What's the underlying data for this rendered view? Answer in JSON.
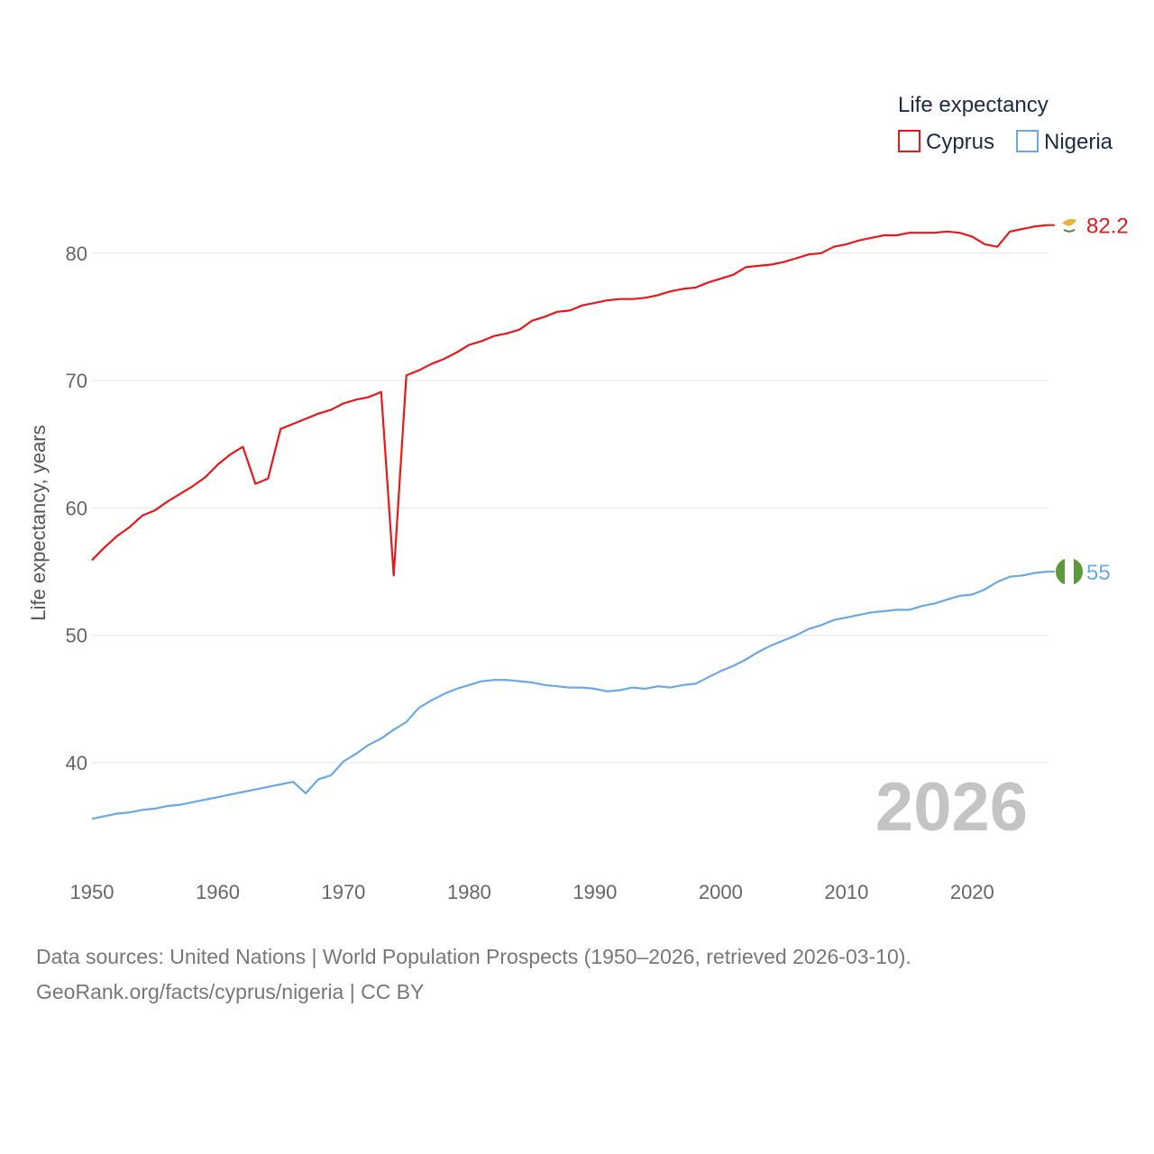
{
  "chart_data": {
    "type": "line",
    "title": "",
    "legend_title": "Life expectancy",
    "xlabel": "",
    "ylabel": "Life expectancy, years",
    "xlim": [
      1950,
      2026
    ],
    "ylim": [
      34,
      90
    ],
    "x_ticks": [
      1950,
      1960,
      1970,
      1980,
      1990,
      2000,
      2010,
      2020
    ],
    "y_ticks": [
      40,
      50,
      60,
      70,
      80
    ],
    "grid": true,
    "legend_position": "top-right",
    "current_year": "2026",
    "series": [
      {
        "name": "Cyprus",
        "color": "#e8181b",
        "end_label": "82.2",
        "flag_icon": "cyprus-flag-icon",
        "x": [
          1950,
          1951,
          1952,
          1953,
          1954,
          1955,
          1956,
          1957,
          1958,
          1959,
          1960,
          1961,
          1962,
          1963,
          1964,
          1965,
          1966,
          1967,
          1968,
          1969,
          1970,
          1971,
          1972,
          1973,
          1974,
          1975,
          1976,
          1977,
          1978,
          1979,
          1980,
          1981,
          1982,
          1983,
          1984,
          1985,
          1986,
          1987,
          1988,
          1989,
          1990,
          1991,
          1992,
          1993,
          1994,
          1995,
          1996,
          1997,
          1998,
          1999,
          2000,
          2001,
          2002,
          2003,
          2004,
          2005,
          2006,
          2007,
          2008,
          2009,
          2010,
          2011,
          2012,
          2013,
          2014,
          2015,
          2016,
          2017,
          2018,
          2019,
          2020,
          2021,
          2022,
          2023,
          2024,
          2025,
          2026
        ],
        "values": [
          55.9,
          56.9,
          57.8,
          58.5,
          59.4,
          59.8,
          60.5,
          61.1,
          61.7,
          62.4,
          63.4,
          64.2,
          64.8,
          61.9,
          62.3,
          66.2,
          66.6,
          67.0,
          67.4,
          67.7,
          68.2,
          68.5,
          68.7,
          69.1,
          54.7,
          70.4,
          70.8,
          71.3,
          71.7,
          72.2,
          72.8,
          73.1,
          73.5,
          73.7,
          74.0,
          74.7,
          75.0,
          75.4,
          75.5,
          75.9,
          76.1,
          76.3,
          76.4,
          76.4,
          76.5,
          76.7,
          77.0,
          77.2,
          77.3,
          77.7,
          78.0,
          78.3,
          78.9,
          79.0,
          79.1,
          79.3,
          79.6,
          79.9,
          80.0,
          80.5,
          80.7,
          81.0,
          81.2,
          81.4,
          81.4,
          81.6,
          81.6,
          81.6,
          81.7,
          81.6,
          81.3,
          80.7,
          80.5,
          81.7,
          81.9,
          82.1,
          82.2
        ]
      },
      {
        "name": "Nigeria",
        "color": "#6aa9e6",
        "end_label": "55",
        "flag_icon": "nigeria-flag-icon",
        "x": [
          1950,
          1951,
          1952,
          1953,
          1954,
          1955,
          1956,
          1957,
          1958,
          1959,
          1960,
          1961,
          1962,
          1963,
          1964,
          1965,
          1966,
          1967,
          1968,
          1969,
          1970,
          1971,
          1972,
          1973,
          1974,
          1975,
          1976,
          1977,
          1978,
          1979,
          1980,
          1981,
          1982,
          1983,
          1984,
          1985,
          1986,
          1987,
          1988,
          1989,
          1990,
          1991,
          1992,
          1993,
          1994,
          1995,
          1996,
          1997,
          1998,
          1999,
          2000,
          2001,
          2002,
          2003,
          2004,
          2005,
          2006,
          2007,
          2008,
          2009,
          2010,
          2011,
          2012,
          2013,
          2014,
          2015,
          2016,
          2017,
          2018,
          2019,
          2020,
          2021,
          2022,
          2023,
          2024,
          2025,
          2026
        ],
        "values": [
          35.6,
          35.8,
          36.0,
          36.1,
          36.3,
          36.4,
          36.6,
          36.7,
          36.9,
          37.1,
          37.3,
          37.5,
          37.7,
          37.9,
          38.1,
          38.3,
          38.5,
          37.6,
          38.7,
          39.0,
          40.1,
          40.7,
          41.4,
          41.9,
          42.6,
          43.2,
          44.3,
          44.9,
          45.4,
          45.8,
          46.1,
          46.4,
          46.5,
          46.5,
          46.4,
          46.3,
          46.1,
          46.0,
          45.9,
          45.9,
          45.8,
          45.6,
          45.7,
          45.9,
          45.8,
          46.0,
          45.9,
          46.1,
          46.2,
          46.7,
          47.2,
          47.6,
          48.1,
          48.7,
          49.2,
          49.6,
          50.0,
          50.5,
          50.8,
          51.2,
          51.4,
          51.6,
          51.8,
          51.9,
          52.0,
          52.0,
          52.3,
          52.5,
          52.8,
          53.1,
          53.2,
          53.6,
          54.2,
          54.6,
          54.7,
          54.9,
          55.0
        ]
      }
    ]
  },
  "footer": {
    "line1": "Data sources: United Nations | World Population Prospects (1950–2026, retrieved 2026-03-10).",
    "line2": "GeoRank.org/facts/cyprus/nigeria | CC BY"
  }
}
